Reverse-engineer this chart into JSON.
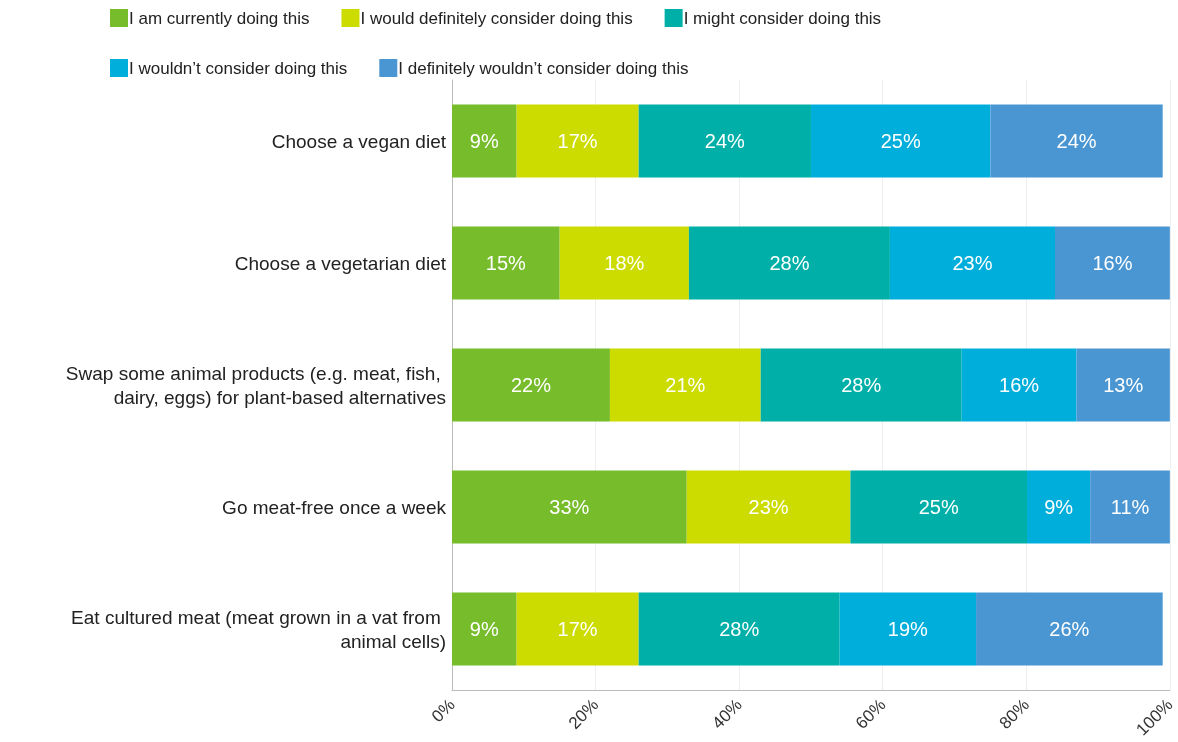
{
  "chart_data": {
    "type": "bar",
    "orientation": "horizontal",
    "stacked": true,
    "categories": [
      "Choose a vegan diet",
      "Choose a vegetarian diet",
      "Swap some animal products (e.g. meat, fish, dairy, eggs) for plant-based alternatives",
      "Go meat-free once a week",
      "Eat cultured meat (meat grown in a vat from animal cells)"
    ],
    "series": [
      {
        "name": "I am currently doing this",
        "color": "#77bc2b",
        "values": [
          9,
          15,
          22,
          32.7,
          9
        ],
        "value_labels": [
          "9%",
          "15%",
          "22%",
          "33%",
          "9%"
        ]
      },
      {
        "name": "I would definitely consider doing this",
        "color": "#cddc00",
        "values": [
          17,
          18,
          21,
          22.8,
          17
        ],
        "value_labels": [
          "17%",
          "18%",
          "21%",
          "23%",
          "17%"
        ]
      },
      {
        "name": "I might consider doing this",
        "color": "#00b0a8",
        "values": [
          24,
          28,
          28,
          24.6,
          28
        ],
        "value_labels": [
          "24%",
          "28%",
          "28%",
          "25%",
          "28%"
        ]
      },
      {
        "name": "I wouldn’t consider doing this",
        "color": "#00aedb",
        "values": [
          25,
          23,
          16,
          8.8,
          19
        ],
        "value_labels": [
          "25%",
          "23%",
          "16%",
          "9%",
          "19%"
        ]
      },
      {
        "name": "I definitely wouldn’t consider doing this",
        "color": "#4a96d2",
        "values": [
          24,
          16,
          13,
          11.1,
          26
        ],
        "value_labels": [
          "24%",
          "16%",
          "13%",
          "11%",
          "26%"
        ]
      }
    ],
    "xlim": [
      0,
      100
    ],
    "xticks": [
      {
        "value": 0,
        "label": "0%"
      },
      {
        "value": 20,
        "label": "20%"
      },
      {
        "value": 40,
        "label": "40%"
      },
      {
        "value": 60,
        "label": "60%"
      },
      {
        "value": 80,
        "label": "80%"
      },
      {
        "value": 100,
        "label": "100%"
      }
    ],
    "grid": "x",
    "legend": "top"
  }
}
